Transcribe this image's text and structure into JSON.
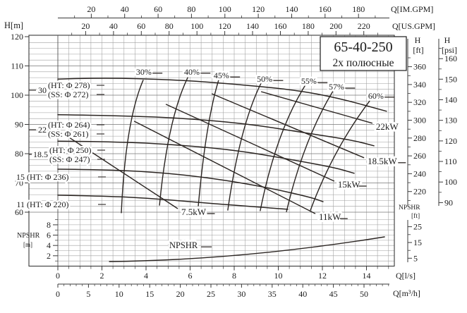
{
  "title": {
    "model": "65-40-250",
    "poles": "2х полюсные"
  },
  "axes": {
    "top_imgpm": {
      "unit": "Q[IM.GPM]",
      "majors": [
        20,
        40,
        60,
        80,
        100,
        120,
        140,
        160,
        180
      ]
    },
    "top_usgpm": {
      "unit": "Q[US.GPM]",
      "majors": [
        20,
        40,
        60,
        80,
        100,
        120,
        140,
        160,
        180,
        200,
        220
      ]
    },
    "left_h_m": {
      "unit": "H[m]",
      "majors": [
        120,
        110,
        100,
        90,
        80,
        70,
        60
      ]
    },
    "right_h_ft": {
      "unit_lines": [
        "H",
        "[ft]"
      ],
      "majors": [
        360,
        340,
        320,
        300,
        280,
        260,
        240,
        220
      ]
    },
    "right_h_psi": {
      "unit_lines": [
        "H",
        "[psi]"
      ],
      "majors": [
        160,
        150,
        140,
        130,
        120,
        110,
        100,
        90
      ]
    },
    "bottom_ls": {
      "unit": "Q[l/s]",
      "majors": [
        0,
        2,
        4,
        6,
        8,
        10,
        12,
        14
      ]
    },
    "bottom_m3h": {
      "unit": "Q[m³/h]",
      "majors": [
        0,
        5,
        10,
        15,
        20,
        25,
        30,
        35,
        40,
        45,
        50
      ]
    },
    "npshr_m": {
      "unit_lines": [
        "NPSHR",
        "[m]"
      ],
      "majors": [
        8,
        6,
        4,
        2
      ]
    },
    "npshr_ft": {
      "unit_lines": [
        "NPSHR",
        "[ft]"
      ],
      "majors": [
        25,
        15,
        5
      ]
    }
  },
  "chart_data": {
    "type": "line",
    "title": "65-40-250 2х полюсные pump performance curves",
    "xlabel": "Q [l/s]",
    "ylabel": "H [m]",
    "q_axis_ls_range": [
      0,
      15.25
    ],
    "h_axis_m_range": [
      60,
      120
    ],
    "npshr_axis_m_range": [
      0,
      9
    ],
    "grid": "on",
    "hq_curves": [
      {
        "motor_kw": "30",
        "labels": [
          "(HT: Φ 278)",
          "(SS: Φ 272)"
        ],
        "points": [
          [
            0,
            105.5
          ],
          [
            1.86,
            106.0
          ],
          [
            5.38,
            105.3
          ],
          [
            8.58,
            103.4
          ],
          [
            10.82,
            101.7
          ],
          [
            12.74,
            99.0
          ],
          [
            14.91,
            94.5
          ]
        ]
      },
      {
        "motor_kw": "22",
        "labels": [
          "(HT: Φ 264)",
          "(SS: Φ 261)"
        ],
        "points": [
          [
            0,
            93.3
          ],
          [
            3.14,
            93.0
          ],
          [
            6.34,
            91.8
          ],
          [
            8.9,
            89.9
          ],
          [
            11.14,
            87.2
          ],
          [
            13.38,
            84.6
          ],
          [
            14.34,
            82.7
          ]
        ]
      },
      {
        "motor_kw": "18.5",
        "labels": [
          "(HT: Φ 250)",
          "(SS: Φ 247)"
        ],
        "points": [
          [
            0,
            84.3
          ],
          [
            2.82,
            84.1
          ],
          [
            5.7,
            82.9
          ],
          [
            8.26,
            81.0
          ],
          [
            10.5,
            78.1
          ],
          [
            12.58,
            75.2
          ],
          [
            13.44,
            73.3
          ]
        ]
      },
      {
        "motor_kw": "15",
        "labels": [
          "(HT: Φ 236)"
        ],
        "points": [
          [
            0,
            74.7
          ],
          [
            2.5,
            74.5
          ],
          [
            5.06,
            73.3
          ],
          [
            7.3,
            71.3
          ],
          [
            9.54,
            68.4
          ],
          [
            11.46,
            65.1
          ],
          [
            12.03,
            63.6
          ]
        ]
      },
      {
        "motor_kw": "11",
        "labels": [
          "(HT: Φ 220)"
        ],
        "points": [
          [
            0,
            65.8
          ],
          [
            2.18,
            65.5
          ],
          [
            4.1,
            64.8
          ],
          [
            6.02,
            63.6
          ],
          [
            7.94,
            62.4
          ],
          [
            10.43,
            61.0
          ]
        ]
      }
    ],
    "efficiency_curves": [
      {
        "label": "30%",
        "path": [
          [
            2.88,
            59.8
          ],
          [
            3.07,
            91.1
          ],
          [
            3.87,
            105.1
          ]
        ],
        "label_at": [
          3.9,
          108.0
        ]
      },
      {
        "label": "40%",
        "path": [
          [
            4.61,
            62.4
          ],
          [
            4.99,
            92.0
          ],
          [
            5.89,
            106.0
          ]
        ],
        "label_at": [
          6.08,
          108.0
        ]
      },
      {
        "label": "45%",
        "path": [
          [
            6.37,
            62.2
          ],
          [
            6.72,
            91.1
          ],
          [
            7.3,
            105.3
          ]
        ],
        "label_at": [
          7.42,
          106.7
        ]
      },
      {
        "label": "50%",
        "path": [
          [
            7.71,
            60.7
          ],
          [
            8.26,
            89.6
          ],
          [
            9.22,
            104.1
          ]
        ],
        "label_at": [
          9.38,
          105.5
        ]
      },
      {
        "label": "55%",
        "path": [
          [
            9.18,
            60.5
          ],
          [
            9.89,
            87.2
          ],
          [
            11.2,
            103.1
          ]
        ],
        "label_at": [
          11.39,
          104.8
        ]
      },
      {
        "label": "57%",
        "path": [
          [
            10.37,
            60.2
          ],
          [
            11.14,
            84.8
          ],
          [
            12.48,
            101.4
          ]
        ],
        "label_at": [
          12.64,
          102.9
        ]
      },
      {
        "label": "60%",
        "path": [
          [
            11.46,
            60.7
          ],
          [
            12.48,
            81.4
          ],
          [
            14.14,
            98.0
          ]
        ],
        "label_at": [
          14.43,
          99.8
        ]
      }
    ],
    "power_lines": [
      {
        "label": "7.5kW",
        "from": [
          0.42,
          86.0
        ],
        "to": [
          5.44,
          61.2
        ]
      },
      {
        "label": "11kW",
        "from": [
          3.46,
          91.1
        ],
        "to": [
          11.68,
          59.5
        ]
      },
      {
        "label": "15kW",
        "from": [
          4.9,
          96.9
        ],
        "to": [
          12.54,
          70.6
        ]
      },
      {
        "label": "18.5kW",
        "from": [
          6.98,
          100.5
        ],
        "to": [
          13.89,
          78.6
        ]
      },
      {
        "label": "22kW",
        "from": [
          9.22,
          101.2
        ],
        "to": [
          14.27,
          90.4
        ]
      }
    ],
    "npshr_curve": {
      "label": "NPSHR",
      "path": [
        [
          2.34,
          0.89
        ],
        [
          8.26,
          1.16
        ],
        [
          14.82,
          5.66
        ]
      ],
      "label_at": [
        5.7,
        4.0
      ]
    }
  }
}
